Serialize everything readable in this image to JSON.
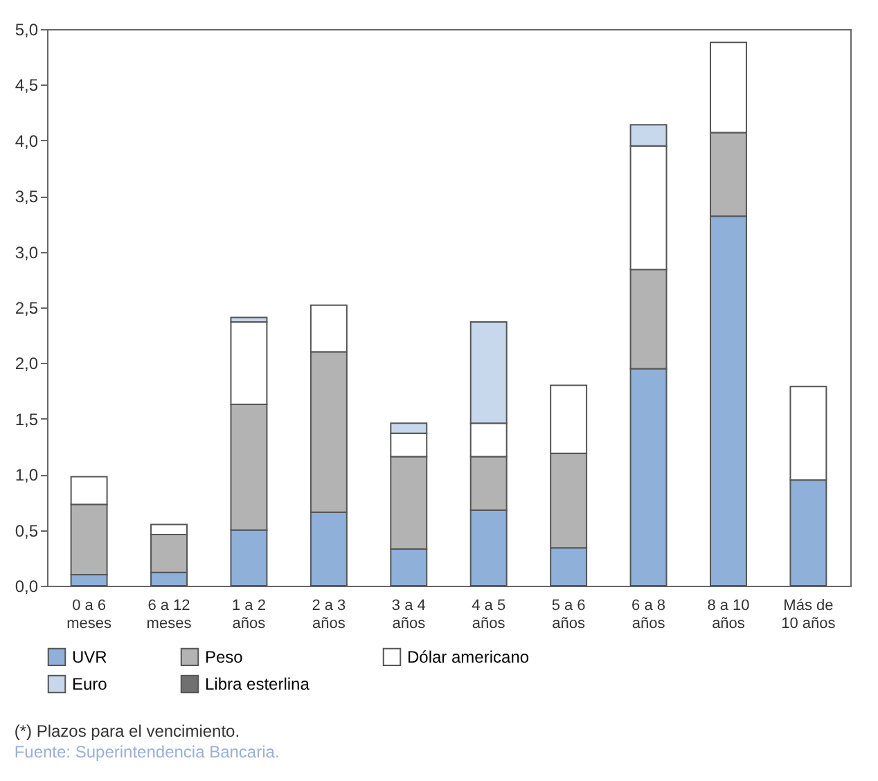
{
  "chart_data": {
    "type": "bar",
    "stacked": true,
    "categories": [
      "0 a 6\nmeses",
      "6 a 12\nmeses",
      "1 a 2\naños",
      "2 a 3\naños",
      "3 a 4\naños",
      "4 a 5\naños",
      "5 a 6\naños",
      "6 a 8\naños",
      "8 a 10\naños",
      "Más de\n10 años"
    ],
    "series": [
      {
        "name": "UVR",
        "color": "#8fb0d8",
        "values": [
          0.1,
          0.12,
          0.5,
          0.66,
          0.33,
          0.68,
          0.34,
          1.95,
          3.32,
          0.95
        ]
      },
      {
        "name": "Peso",
        "color": "#b3b3b3",
        "values": [
          0.63,
          0.34,
          1.13,
          1.44,
          0.83,
          0.48,
          0.85,
          0.89,
          0.75,
          null
        ]
      },
      {
        "name": "Dólar americano",
        "color": "#ffffff",
        "values": [
          0.25,
          0.09,
          0.74,
          0.42,
          0.21,
          0.3,
          0.61,
          1.11,
          0.81,
          0.84
        ]
      },
      {
        "name": "Euro",
        "color": "#c8d8ec",
        "values": [
          null,
          null,
          0.04,
          null,
          0.09,
          0.91,
          null,
          0.19,
          null,
          null
        ]
      },
      {
        "name": "Libra esterlina",
        "color": "#707070",
        "values": [
          null,
          null,
          null,
          null,
          null,
          null,
          null,
          null,
          null,
          null
        ]
      }
    ],
    "ylim": [
      0,
      5
    ],
    "yticks": [
      {
        "value": 0,
        "label": "0,0"
      },
      {
        "value": 0.5,
        "label": "0,5"
      },
      {
        "value": 1,
        "label": "1,0"
      },
      {
        "value": 1.5,
        "label": "1,5"
      },
      {
        "value": 2,
        "label": "2,0"
      },
      {
        "value": 2.5,
        "label": "2,5"
      },
      {
        "value": 3,
        "label": "3,0"
      },
      {
        "value": 3.5,
        "label": "3,5"
      },
      {
        "value": 4,
        "label": "4,0"
      },
      {
        "value": 4.5,
        "label": "4,5"
      },
      {
        "value": 5,
        "label": "5,0"
      }
    ],
    "grid": false,
    "legend": "bottom",
    "annotations": [
      "(*) Plazos para el vencimiento.",
      "Fuente: Superintendencia Bancaria."
    ]
  }
}
